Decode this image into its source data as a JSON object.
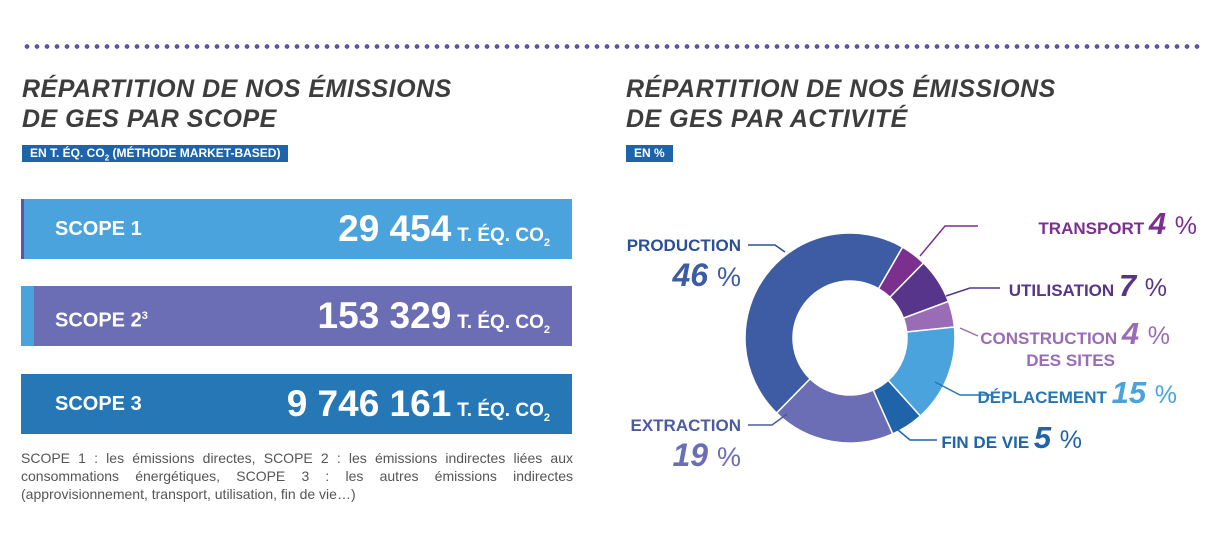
{
  "left": {
    "title_line1": "RÉPARTITION DE NOS ÉMISSIONS",
    "title_line2": "DE GES PAR SCOPE",
    "tag": "EN T. ÉQ. CO",
    "tag_sub": "2",
    "tag_suffix": " (MÉTHODE MARKET-BASED)",
    "scopes": [
      {
        "label": "SCOPE 1",
        "sup": "",
        "value": "29 454",
        "unit": "T. ÉQ. CO",
        "unit_sub": "2"
      },
      {
        "label": "SCOPE 2",
        "sup": "3",
        "value": "153 329",
        "unit": "T. ÉQ. CO",
        "unit_sub": "2"
      },
      {
        "label": "SCOPE 3",
        "sup": "",
        "value": "9 746 161",
        "unit": "T. ÉQ. CO",
        "unit_sub": "2"
      }
    ],
    "footnote": "SCOPE 1 : les émissions directes, SCOPE 2 : les émissions indirectes liées aux consommations énergétiques, SCOPE 3 : les autres émissions indirectes (approvisionnement, transport, utilisation, fin de vie…)",
    "colors": {
      "scope1": "#4aa3dc",
      "scope2": "#6b6eb4",
      "scope3": "#2577b6",
      "accent": "#4aa3dc",
      "scope1_accent": "#5d54a4"
    }
  },
  "right": {
    "title_line1": "RÉPARTITION DE NOS ÉMISSIONS",
    "title_line2": "DE GES PAR ACTIVITÉ",
    "tag": "EN %"
  },
  "chart_data": {
    "type": "pie",
    "donut": true,
    "unit": "%",
    "slices": [
      {
        "label": "TRANSPORT",
        "value": 4,
        "color": "#7b2f8f"
      },
      {
        "label": "UTILISATION",
        "value": 7,
        "color": "#56358a"
      },
      {
        "label": "CONSTRUCTION DES SITES",
        "value": 4,
        "color": "#9b6cb6"
      },
      {
        "label": "DÉPLACEMENT",
        "value": 15,
        "color": "#4aa3dc"
      },
      {
        "label": "FIN DE VIE",
        "value": 5,
        "color": "#1f63a8"
      },
      {
        "label": "EXTRACTION",
        "value": 19,
        "color": "#6b6eb4"
      },
      {
        "label": "PRODUCTION",
        "value": 46,
        "color": "#3d5ca4"
      }
    ]
  }
}
